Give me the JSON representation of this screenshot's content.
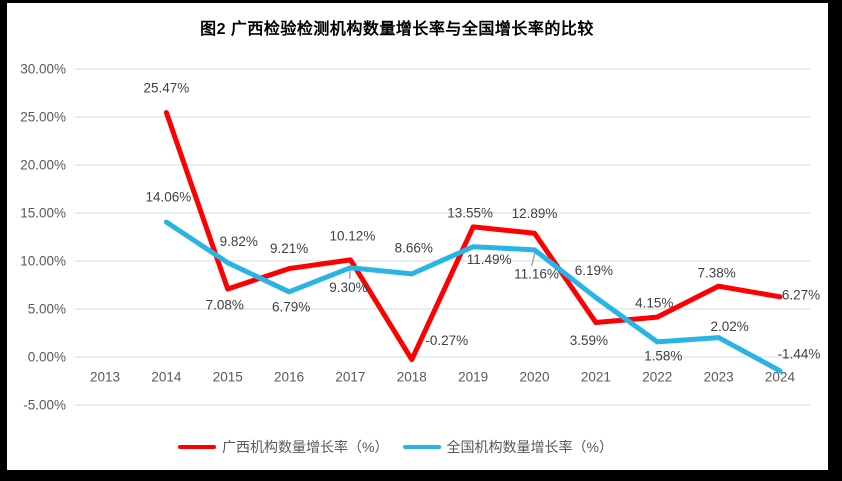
{
  "frame": {
    "border_color": "#000000",
    "background": "#ffffff"
  },
  "title": "图2 广西检验检测机构数量增长率与全国增长率的比较",
  "chart_data": {
    "type": "line",
    "title": "图2 广西检验检测机构数量增长率与全国增长率的比较",
    "categories": [
      "2013",
      "2014",
      "2015",
      "2016",
      "2017",
      "2018",
      "2019",
      "2020",
      "2021",
      "2022",
      "2023",
      "2024"
    ],
    "series": [
      {
        "name": "广西机构数量增长率（%）",
        "color": "#fe0000",
        "values": [
          null,
          25.47,
          7.08,
          9.21,
          10.12,
          -0.27,
          13.55,
          12.89,
          3.59,
          4.15,
          7.38,
          6.27
        ],
        "labels": [
          null,
          "25.47%",
          "7.08%",
          "9.21%",
          "10.12%",
          "-0.27%",
          "13.55%",
          "12.89%",
          "3.59%",
          "4.15%",
          "7.38%",
          "6.27%"
        ]
      },
      {
        "name": "全国机构数量增长率（%）",
        "color": "#29b4e6",
        "values": [
          null,
          14.06,
          9.82,
          6.79,
          9.3,
          8.66,
          11.49,
          11.16,
          6.19,
          1.58,
          2.02,
          -1.44
        ],
        "labels": [
          null,
          "14.06%",
          "9.82%",
          "6.79%",
          "9.30%",
          "8.66%",
          "11.49%",
          "11.16%",
          "6.19%",
          "1.58%",
          "2.02%",
          "-1.44%"
        ]
      }
    ],
    "ylim": [
      -5,
      30
    ],
    "ytick_step": 5,
    "ytick_labels": [
      "30.00%",
      "25.00%",
      "20.00%",
      "15.00%",
      "10.00%",
      "5.00%",
      "0.00%",
      "-5.00%"
    ],
    "grid": true,
    "gridline_color": "#d9d9d9",
    "leader_line_color": "#a6a6a6",
    "axis_label_color": "#595959",
    "data_label_color": "#404040",
    "legend_position": "bottom"
  },
  "legend": {
    "items": [
      {
        "label": "广西机构数量增长率（%）",
        "color": "#fe0000"
      },
      {
        "label": "全国机构数量增长率（%）",
        "color": "#29b4e6"
      }
    ]
  }
}
